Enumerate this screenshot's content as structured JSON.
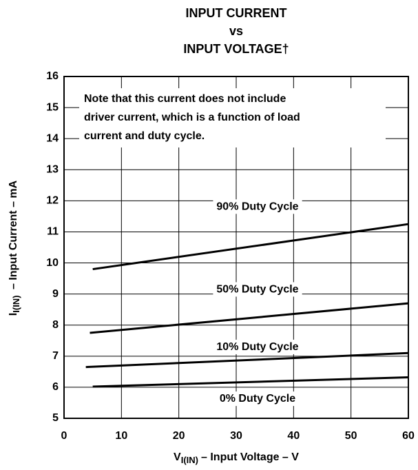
{
  "chart_data": {
    "type": "line",
    "title": [
      "INPUT CURRENT",
      "vs",
      "INPUT VOLTAGE†"
    ],
    "xlabel": {
      "main": "V",
      "sub": "I(IN)",
      "rest": "– Input Voltage – V"
    },
    "ylabel": {
      "main": "I",
      "sub": "I(IN)",
      "rest": " – Input Current – mA"
    },
    "note": [
      "Note that this current does not include",
      "driver current, which is a function of load",
      "current and duty cycle."
    ],
    "xlim": [
      0,
      60
    ],
    "xticks": [
      0,
      10,
      20,
      30,
      40,
      50,
      60
    ],
    "ylim": [
      5,
      16
    ],
    "yticks": [
      5,
      6,
      7,
      8,
      9,
      10,
      11,
      12,
      13,
      14,
      15,
      16
    ],
    "grid": true,
    "series": [
      {
        "name": "90% Duty Cycle",
        "color": "#000000",
        "x": [
          5,
          60
        ],
        "values": [
          9.8,
          11.25
        ]
      },
      {
        "name": "50% Duty Cycle",
        "color": "#000000",
        "x": [
          4.5,
          60
        ],
        "values": [
          7.75,
          8.7
        ]
      },
      {
        "name": "10% Duty Cycle",
        "color": "#000000",
        "x": [
          3.8,
          60
        ],
        "values": [
          6.65,
          7.1
        ]
      },
      {
        "name": "0% Duty Cycle",
        "color": "#000000",
        "x": [
          5,
          60
        ],
        "values": [
          6.02,
          6.32
        ]
      }
    ]
  }
}
